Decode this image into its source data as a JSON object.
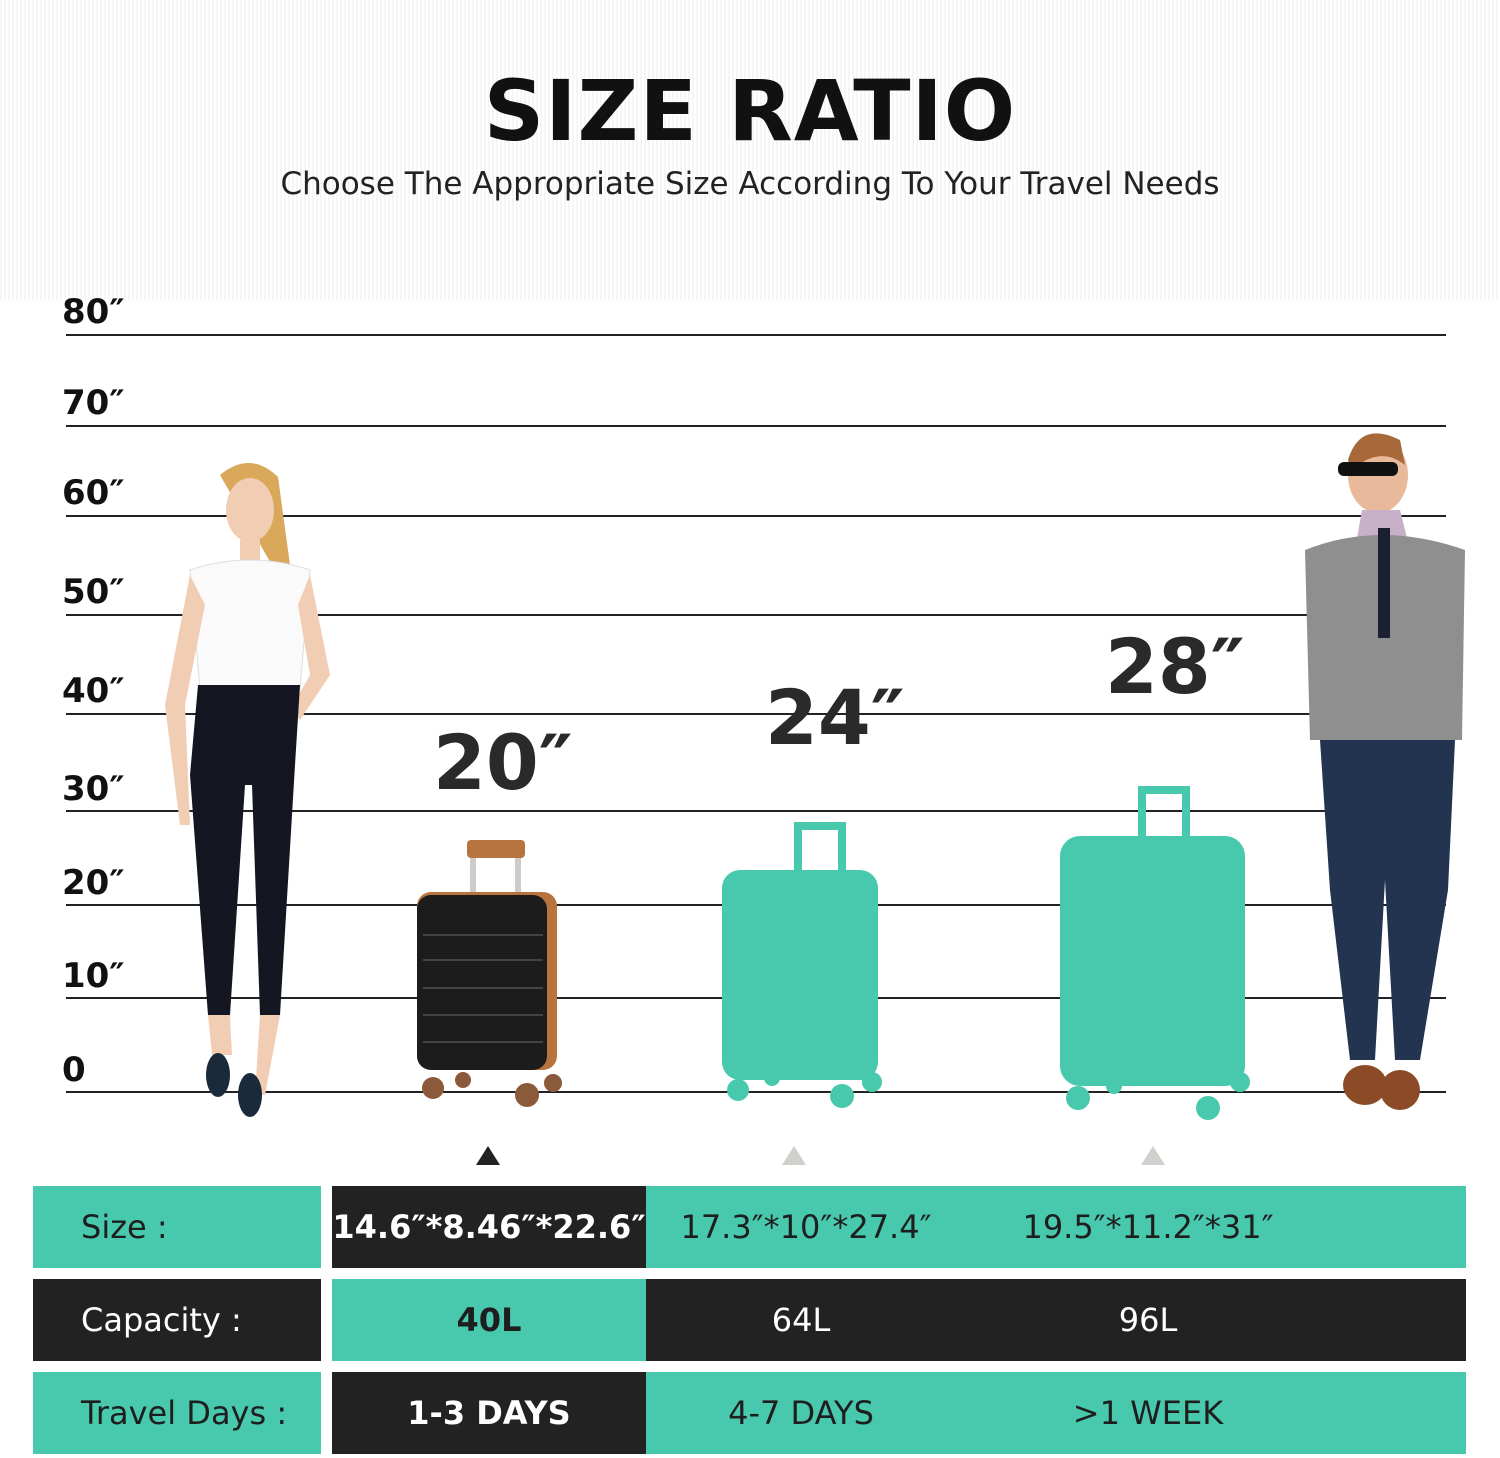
{
  "header": {
    "title": "SIZE RATIO",
    "subtitle": "Choose The Appropriate Size According To Your Travel Needs"
  },
  "scale": {
    "ticks": [
      "80″",
      "70″",
      "60″",
      "50″",
      "40″",
      "30″",
      "20″",
      "10″",
      "0"
    ]
  },
  "suitcases": [
    {
      "label": "20″",
      "color": "#222222",
      "accent": "#B8743E",
      "selected": true
    },
    {
      "label": "24″",
      "color": "#48C9AD",
      "selected": false
    },
    {
      "label": "28″",
      "color": "#48C9AD",
      "selected": false
    }
  ],
  "table": {
    "rows": [
      {
        "label": "Size :",
        "values": [
          "14.6″*8.46″*22.6″",
          "17.3″*10″*27.4″",
          "19.5″*11.2″*31″"
        ]
      },
      {
        "label": "Capacity :",
        "values": [
          "40L",
          "64L",
          "96L"
        ]
      },
      {
        "label": "Travel Days :",
        "values": [
          "1-3 DAYS",
          "4-7 DAYS",
          ">1 WEEK"
        ]
      }
    ]
  },
  "colors": {
    "teal": "#48C9AD",
    "dark": "#222222"
  }
}
